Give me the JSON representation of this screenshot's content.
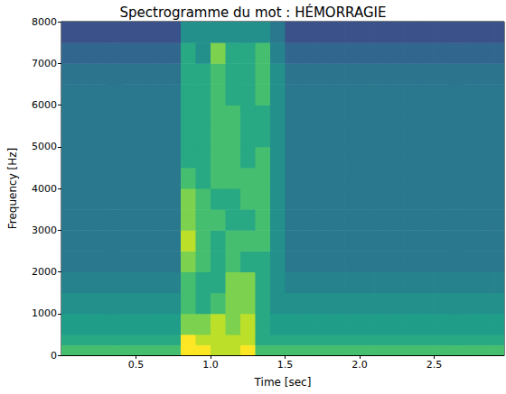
{
  "chart_data": {
    "type": "heatmap",
    "title": "Spectrogramme du mot : HÉMORRAGIE",
    "xlabel": "Time [sec]",
    "ylabel": "Frequency [Hz]",
    "xlim": [
      0,
      2.97
    ],
    "xticks": [
      0.5,
      {
        "value": 1,
        "label": "1.0"
      },
      1.5,
      {
        "value": 2,
        "label": "2.0"
      },
      2.5
    ],
    "ylim": [
      0,
      8000
    ],
    "yticks": [
      0,
      1000,
      2000,
      3000,
      4000,
      5000,
      6000,
      7000,
      8000
    ],
    "grid": false,
    "x_bins": [
      0,
      0.1,
      0.2,
      0.3,
      0.4,
      0.5,
      0.6,
      0.7,
      0.8,
      0.9,
      1.0,
      1.1,
      1.2,
      1.3,
      1.4,
      1.5,
      1.6,
      1.7,
      1.8,
      1.9,
      2.0,
      2.1,
      2.2,
      2.3,
      2.4,
      2.5,
      2.6,
      2.7,
      2.8,
      2.9,
      3.0
    ],
    "y_bins": [
      0,
      250,
      500,
      1000,
      1500,
      2000,
      2500,
      3000,
      3500,
      4000,
      4500,
      5000,
      5500,
      6000,
      6500,
      7000,
      7500,
      8000
    ],
    "zlim": [
      0,
      10
    ],
    "cells": [
      [
        7,
        7,
        7,
        7,
        7,
        7,
        7,
        7,
        10,
        10,
        9,
        9,
        10,
        7,
        7,
        7,
        7,
        7,
        7,
        7,
        7,
        7,
        7,
        7,
        7,
        7,
        7,
        7,
        7,
        7
      ],
      [
        6,
        6,
        6,
        6,
        6,
        6,
        6,
        6,
        10,
        9,
        9,
        9,
        9,
        6,
        6,
        6,
        6,
        6,
        6,
        6,
        6,
        6,
        6,
        6,
        6,
        6,
        6,
        6,
        6,
        6
      ],
      [
        5.5,
        5.5,
        5.5,
        5.5,
        5.5,
        5.5,
        5.5,
        5.5,
        8,
        8,
        9,
        8,
        9,
        6,
        5.5,
        5.5,
        5.5,
        5.5,
        5.5,
        5.5,
        5.5,
        5.5,
        5.5,
        5.5,
        5.5,
        5.5,
        5.5,
        5.5,
        5.5,
        5.5
      ],
      [
        5,
        5,
        5,
        5,
        5,
        5,
        5,
        5,
        7,
        6,
        7,
        8,
        8,
        6,
        5,
        5,
        5,
        5,
        5,
        5,
        5,
        5,
        5,
        5,
        5,
        5,
        5,
        5,
        5,
        5
      ],
      [
        4.5,
        4.5,
        4.5,
        4.5,
        4.5,
        4.5,
        4.5,
        4.5,
        7,
        6,
        6,
        8,
        8,
        6,
        5,
        4.5,
        4.5,
        4.5,
        4.5,
        4.5,
        4.5,
        4.5,
        4.5,
        4.5,
        4.5,
        4.5,
        4.5,
        4.5,
        4.5,
        4.5
      ],
      [
        4,
        4,
        4,
        4,
        4,
        4,
        4,
        4,
        8,
        7,
        6,
        7,
        6,
        6,
        5,
        4,
        4,
        4,
        4,
        4,
        4,
        4,
        4,
        4,
        4,
        4,
        4,
        4,
        4,
        4
      ],
      [
        4,
        4,
        4,
        4,
        4,
        4,
        4,
        4,
        9,
        7,
        6,
        7,
        7,
        7,
        5,
        4,
        4,
        4,
        4,
        4,
        4,
        4,
        4,
        4,
        4,
        4,
        4,
        4,
        4,
        4
      ],
      [
        4,
        4,
        4,
        4,
        4,
        4,
        4,
        4,
        8,
        7,
        7,
        6,
        6,
        7,
        5,
        4,
        4,
        4,
        4,
        4,
        4,
        4,
        4,
        4,
        4,
        4,
        4,
        4,
        4,
        4
      ],
      [
        4,
        4,
        4,
        4,
        4,
        4,
        4,
        4,
        8,
        7,
        6,
        6,
        7,
        7,
        5,
        4,
        4,
        4,
        4,
        4,
        4,
        4,
        4,
        4,
        4,
        4,
        4,
        4,
        4,
        4
      ],
      [
        4,
        4,
        4,
        4,
        4,
        4,
        4,
        4,
        7,
        6,
        7,
        7,
        7,
        7,
        5,
        4,
        4,
        4,
        4,
        4,
        4,
        4,
        4,
        4,
        4,
        4,
        4,
        4,
        4,
        4
      ],
      [
        4,
        4,
        4,
        4,
        4,
        4,
        4,
        4,
        6,
        6,
        7,
        7,
        6,
        7,
        5,
        4,
        4,
        4,
        4,
        4,
        4,
        4,
        4,
        4,
        4,
        4,
        4,
        4,
        4,
        4
      ],
      [
        4,
        4,
        4,
        4,
        4,
        4,
        4,
        4,
        6,
        6,
        7,
        7,
        6,
        6,
        5,
        4,
        4,
        4,
        4,
        4,
        4,
        4,
        4,
        4,
        4,
        4,
        4,
        4,
        4,
        4
      ],
      [
        4,
        4,
        4,
        4,
        4,
        4,
        4,
        4,
        6,
        6,
        7,
        7,
        6,
        6,
        5,
        4,
        4,
        4,
        4,
        4,
        4,
        4,
        4,
        4,
        4,
        4,
        4,
        4,
        4,
        4
      ],
      [
        4,
        4,
        4,
        4,
        4,
        4,
        4,
        4,
        6,
        6,
        7,
        6,
        6,
        7,
        5,
        4,
        4,
        4,
        4,
        4,
        4,
        4,
        4,
        4,
        4,
        4,
        4,
        4,
        4,
        4
      ],
      [
        3.8,
        3.8,
        3.8,
        3.8,
        3.8,
        3.8,
        3.8,
        3.8,
        6,
        6,
        7,
        6,
        6,
        7,
        5,
        3.8,
        3.8,
        3.8,
        3.8,
        3.8,
        3.8,
        3.8,
        3.8,
        3.8,
        3.8,
        3.8,
        3.8,
        3.8,
        3.8,
        3.8
      ],
      [
        3.3,
        3.3,
        3.3,
        3.3,
        3.3,
        3.3,
        3.3,
        3.3,
        6,
        5,
        8,
        6,
        6,
        7,
        4.5,
        3.3,
        3.3,
        3.3,
        3.3,
        3.3,
        3.3,
        3.3,
        3.3,
        3.3,
        3.3,
        3.3,
        3.3,
        3.3,
        3.3,
        3.3
      ],
      [
        2.5,
        2.5,
        2.5,
        2.5,
        2.5,
        2.5,
        2.5,
        2.5,
        5,
        5,
        5,
        5,
        5,
        5,
        4,
        2.5,
        2.5,
        2.5,
        2.5,
        2.5,
        2.5,
        2.5,
        2.5,
        2.5,
        2.5,
        2.5,
        2.5,
        2.5,
        2.5,
        2.5
      ]
    ]
  }
}
